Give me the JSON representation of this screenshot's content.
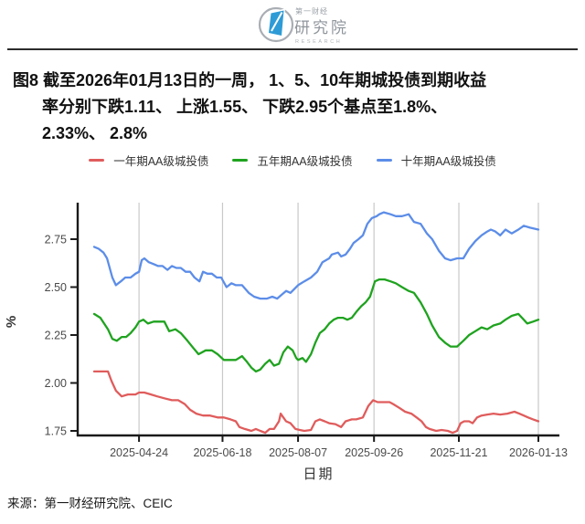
{
  "header": {
    "logo": {
      "brand_top": "第一财经",
      "brand_main": "研究院",
      "brand_sub": "RESEARCH",
      "accent_color": "#2E9BD6",
      "ring_color": "#A9AEB4"
    }
  },
  "figure_title": {
    "lines": [
      "图8 截至2026年01月13日的一周， 1、5、10年期城投债到期收益",
      "率分别下跌1.11、 上涨1.55、 下跌2.95个基点至1.8%、",
      "2.33%、 2.8%"
    ]
  },
  "legend": {
    "items": [
      {
        "label": "一年期AA级城投债",
        "color": "#E05C5C"
      },
      {
        "label": "五年期AA级城投债",
        "color": "#1FA31F"
      },
      {
        "label": "十年期AA级城投债",
        "color": "#5C8DE8"
      }
    ]
  },
  "chart_data": {
    "type": "line",
    "title": "截至2026年01月13日的一周，1、5、10年期城投债到期收益率分别下跌1.11、上涨1.55、下跌2.95个基点至1.8%、2.33%、2.8%",
    "xlabel": "日期",
    "ylabel": "%",
    "grid": "vertical-only",
    "legend_position": "top",
    "ylim": [
      1.73,
      2.94
    ],
    "y_ticks": [
      2.75,
      2.5,
      2.25,
      2.0,
      1.75
    ],
    "x_range": {
      "start": "2025-03-26",
      "end": "2026-01-13",
      "note": "t = fraction of date range"
    },
    "x_ticks": [
      {
        "label": "2025-04-24",
        "t": 0.101
      },
      {
        "label": "2025-06-18",
        "t": 0.289
      },
      {
        "label": "2025-08-07",
        "t": 0.459
      },
      {
        "label": "2025-09-26",
        "t": 0.63
      },
      {
        "label": "2025-11-21",
        "t": 0.821
      },
      {
        "label": "2026-01-13",
        "t": 1.0
      }
    ],
    "series": [
      {
        "name": "一年期AA级城投债",
        "color": "#E05C5C",
        "end_value_pct": 1.8,
        "weekly_change_bp": -1.11,
        "points": [
          [
            0.0,
            2.06
          ],
          [
            0.031,
            2.06
          ],
          [
            0.039,
            2.01
          ],
          [
            0.049,
            1.96
          ],
          [
            0.062,
            1.93
          ],
          [
            0.076,
            1.94
          ],
          [
            0.093,
            1.94
          ],
          [
            0.101,
            1.95
          ],
          [
            0.113,
            1.95
          ],
          [
            0.128,
            1.94
          ],
          [
            0.142,
            1.93
          ],
          [
            0.158,
            1.92
          ],
          [
            0.175,
            1.91
          ],
          [
            0.189,
            1.91
          ],
          [
            0.204,
            1.89
          ],
          [
            0.216,
            1.86
          ],
          [
            0.23,
            1.84
          ],
          [
            0.245,
            1.83
          ],
          [
            0.261,
            1.83
          ],
          [
            0.278,
            1.82
          ],
          [
            0.292,
            1.82
          ],
          [
            0.307,
            1.81
          ],
          [
            0.319,
            1.8
          ],
          [
            0.327,
            1.77
          ],
          [
            0.339,
            1.76
          ],
          [
            0.354,
            1.75
          ],
          [
            0.364,
            1.76
          ],
          [
            0.374,
            1.75
          ],
          [
            0.385,
            1.74
          ],
          [
            0.395,
            1.76
          ],
          [
            0.405,
            1.76
          ],
          [
            0.416,
            1.8
          ],
          [
            0.42,
            1.84
          ],
          [
            0.426,
            1.82
          ],
          [
            0.432,
            1.8
          ],
          [
            0.442,
            1.79
          ],
          [
            0.453,
            1.76
          ],
          [
            0.463,
            1.755
          ],
          [
            0.473,
            1.75
          ],
          [
            0.488,
            1.755
          ],
          [
            0.498,
            1.8
          ],
          [
            0.508,
            1.81
          ],
          [
            0.519,
            1.8
          ],
          [
            0.529,
            1.79
          ],
          [
            0.543,
            1.785
          ],
          [
            0.556,
            1.77
          ],
          [
            0.566,
            1.8
          ],
          [
            0.58,
            1.81
          ],
          [
            0.59,
            1.81
          ],
          [
            0.605,
            1.82
          ],
          [
            0.617,
            1.88
          ],
          [
            0.628,
            1.91
          ],
          [
            0.638,
            1.9
          ],
          [
            0.652,
            1.9
          ],
          [
            0.665,
            1.9
          ],
          [
            0.673,
            1.89
          ],
          [
            0.687,
            1.87
          ],
          [
            0.7,
            1.85
          ],
          [
            0.714,
            1.84
          ],
          [
            0.726,
            1.82
          ],
          [
            0.737,
            1.8
          ],
          [
            0.747,
            1.77
          ],
          [
            0.755,
            1.76
          ],
          [
            0.77,
            1.75
          ],
          [
            0.782,
            1.755
          ],
          [
            0.796,
            1.75
          ],
          [
            0.807,
            1.74
          ],
          [
            0.817,
            1.75
          ],
          [
            0.825,
            1.79
          ],
          [
            0.833,
            1.8
          ],
          [
            0.844,
            1.8
          ],
          [
            0.852,
            1.79
          ],
          [
            0.862,
            1.82
          ],
          [
            0.872,
            1.83
          ],
          [
            0.885,
            1.835
          ],
          [
            0.899,
            1.84
          ],
          [
            0.914,
            1.835
          ],
          [
            0.93,
            1.84
          ],
          [
            0.946,
            1.85
          ],
          [
            0.957,
            1.84
          ],
          [
            0.967,
            1.83
          ],
          [
            0.977,
            1.82
          ],
          [
            0.988,
            1.81
          ],
          [
            1.0,
            1.8
          ]
        ]
      },
      {
        "name": "五年期AA级城投债",
        "color": "#1FA31F",
        "end_value_pct": 2.33,
        "weekly_change_bp": 1.55,
        "points": [
          [
            0.0,
            2.36
          ],
          [
            0.014,
            2.34
          ],
          [
            0.031,
            2.28
          ],
          [
            0.041,
            2.23
          ],
          [
            0.051,
            2.22
          ],
          [
            0.062,
            2.24
          ],
          [
            0.072,
            2.24
          ],
          [
            0.082,
            2.26
          ],
          [
            0.093,
            2.29
          ],
          [
            0.101,
            2.32
          ],
          [
            0.111,
            2.33
          ],
          [
            0.121,
            2.31
          ],
          [
            0.134,
            2.32
          ],
          [
            0.144,
            2.32
          ],
          [
            0.158,
            2.32
          ],
          [
            0.169,
            2.27
          ],
          [
            0.183,
            2.28
          ],
          [
            0.195,
            2.26
          ],
          [
            0.21,
            2.22
          ],
          [
            0.224,
            2.18
          ],
          [
            0.235,
            2.15
          ],
          [
            0.251,
            2.17
          ],
          [
            0.265,
            2.17
          ],
          [
            0.278,
            2.15
          ],
          [
            0.292,
            2.12
          ],
          [
            0.307,
            2.12
          ],
          [
            0.319,
            2.12
          ],
          [
            0.333,
            2.14
          ],
          [
            0.344,
            2.11
          ],
          [
            0.354,
            2.08
          ],
          [
            0.364,
            2.06
          ],
          [
            0.374,
            2.07
          ],
          [
            0.385,
            2.1
          ],
          [
            0.395,
            2.12
          ],
          [
            0.405,
            2.09
          ],
          [
            0.416,
            2.1
          ],
          [
            0.426,
            2.16
          ],
          [
            0.436,
            2.19
          ],
          [
            0.447,
            2.17
          ],
          [
            0.455,
            2.13
          ],
          [
            0.459,
            2.12
          ],
          [
            0.469,
            2.13
          ],
          [
            0.477,
            2.11
          ],
          [
            0.488,
            2.15
          ],
          [
            0.498,
            2.21
          ],
          [
            0.508,
            2.26
          ],
          [
            0.519,
            2.28
          ],
          [
            0.529,
            2.31
          ],
          [
            0.539,
            2.33
          ],
          [
            0.549,
            2.34
          ],
          [
            0.56,
            2.34
          ],
          [
            0.57,
            2.33
          ],
          [
            0.58,
            2.34
          ],
          [
            0.59,
            2.37
          ],
          [
            0.601,
            2.4
          ],
          [
            0.611,
            2.42
          ],
          [
            0.621,
            2.45
          ],
          [
            0.632,
            2.53
          ],
          [
            0.642,
            2.54
          ],
          [
            0.654,
            2.54
          ],
          [
            0.667,
            2.53
          ],
          [
            0.679,
            2.52
          ],
          [
            0.693,
            2.5
          ],
          [
            0.708,
            2.48
          ],
          [
            0.72,
            2.47
          ],
          [
            0.735,
            2.42
          ],
          [
            0.749,
            2.36
          ],
          [
            0.761,
            2.3
          ],
          [
            0.776,
            2.24
          ],
          [
            0.79,
            2.21
          ],
          [
            0.802,
            2.19
          ],
          [
            0.817,
            2.19
          ],
          [
            0.831,
            2.22
          ],
          [
            0.844,
            2.25
          ],
          [
            0.858,
            2.27
          ],
          [
            0.872,
            2.29
          ],
          [
            0.885,
            2.28
          ],
          [
            0.899,
            2.3
          ],
          [
            0.914,
            2.31
          ],
          [
            0.926,
            2.33
          ],
          [
            0.94,
            2.35
          ],
          [
            0.955,
            2.36
          ],
          [
            0.967,
            2.33
          ],
          [
            0.975,
            2.31
          ],
          [
            0.988,
            2.32
          ],
          [
            1.0,
            2.33
          ]
        ]
      },
      {
        "name": "十年期AA级城投债",
        "color": "#5C8DE8",
        "end_value_pct": 2.8,
        "weekly_change_bp": -2.95,
        "points": [
          [
            0.0,
            2.71
          ],
          [
            0.01,
            2.7
          ],
          [
            0.021,
            2.68
          ],
          [
            0.029,
            2.65
          ],
          [
            0.035,
            2.6
          ],
          [
            0.041,
            2.55
          ],
          [
            0.049,
            2.51
          ],
          [
            0.06,
            2.53
          ],
          [
            0.07,
            2.55
          ],
          [
            0.082,
            2.55
          ],
          [
            0.093,
            2.57
          ],
          [
            0.101,
            2.58
          ],
          [
            0.107,
            2.64
          ],
          [
            0.113,
            2.65
          ],
          [
            0.123,
            2.63
          ],
          [
            0.134,
            2.62
          ],
          [
            0.144,
            2.61
          ],
          [
            0.154,
            2.61
          ],
          [
            0.165,
            2.59
          ],
          [
            0.175,
            2.61
          ],
          [
            0.185,
            2.6
          ],
          [
            0.195,
            2.6
          ],
          [
            0.206,
            2.58
          ],
          [
            0.216,
            2.58
          ],
          [
            0.226,
            2.55
          ],
          [
            0.237,
            2.53
          ],
          [
            0.245,
            2.58
          ],
          [
            0.255,
            2.57
          ],
          [
            0.265,
            2.57
          ],
          [
            0.276,
            2.55
          ],
          [
            0.286,
            2.55
          ],
          [
            0.298,
            2.5
          ],
          [
            0.309,
            2.52
          ],
          [
            0.319,
            2.51
          ],
          [
            0.333,
            2.51
          ],
          [
            0.348,
            2.47
          ],
          [
            0.36,
            2.45
          ],
          [
            0.374,
            2.44
          ],
          [
            0.389,
            2.44
          ],
          [
            0.401,
            2.45
          ],
          [
            0.412,
            2.44
          ],
          [
            0.422,
            2.46
          ],
          [
            0.432,
            2.48
          ],
          [
            0.442,
            2.47
          ],
          [
            0.459,
            2.51
          ],
          [
            0.473,
            2.53
          ],
          [
            0.488,
            2.55
          ],
          [
            0.502,
            2.58
          ],
          [
            0.514,
            2.63
          ],
          [
            0.529,
            2.65
          ],
          [
            0.535,
            2.67
          ],
          [
            0.549,
            2.68
          ],
          [
            0.556,
            2.66
          ],
          [
            0.566,
            2.67
          ],
          [
            0.576,
            2.7
          ],
          [
            0.584,
            2.73
          ],
          [
            0.595,
            2.75
          ],
          [
            0.605,
            2.77
          ],
          [
            0.615,
            2.83
          ],
          [
            0.625,
            2.86
          ],
          [
            0.636,
            2.87
          ],
          [
            0.642,
            2.88
          ],
          [
            0.652,
            2.89
          ],
          [
            0.667,
            2.88
          ],
          [
            0.679,
            2.87
          ],
          [
            0.693,
            2.87
          ],
          [
            0.708,
            2.88
          ],
          [
            0.72,
            2.84
          ],
          [
            0.735,
            2.83
          ],
          [
            0.749,
            2.78
          ],
          [
            0.761,
            2.75
          ],
          [
            0.776,
            2.69
          ],
          [
            0.79,
            2.65
          ],
          [
            0.802,
            2.64
          ],
          [
            0.817,
            2.65
          ],
          [
            0.831,
            2.65
          ],
          [
            0.844,
            2.7
          ],
          [
            0.858,
            2.74
          ],
          [
            0.872,
            2.77
          ],
          [
            0.885,
            2.79
          ],
          [
            0.893,
            2.8
          ],
          [
            0.903,
            2.79
          ],
          [
            0.914,
            2.77
          ],
          [
            0.926,
            2.8
          ],
          [
            0.94,
            2.78
          ],
          [
            0.955,
            2.8
          ],
          [
            0.967,
            2.82
          ],
          [
            0.981,
            2.81
          ],
          [
            1.0,
            2.8
          ]
        ]
      }
    ]
  },
  "source": {
    "text": "来源：第一财经研究院、CEIC"
  }
}
